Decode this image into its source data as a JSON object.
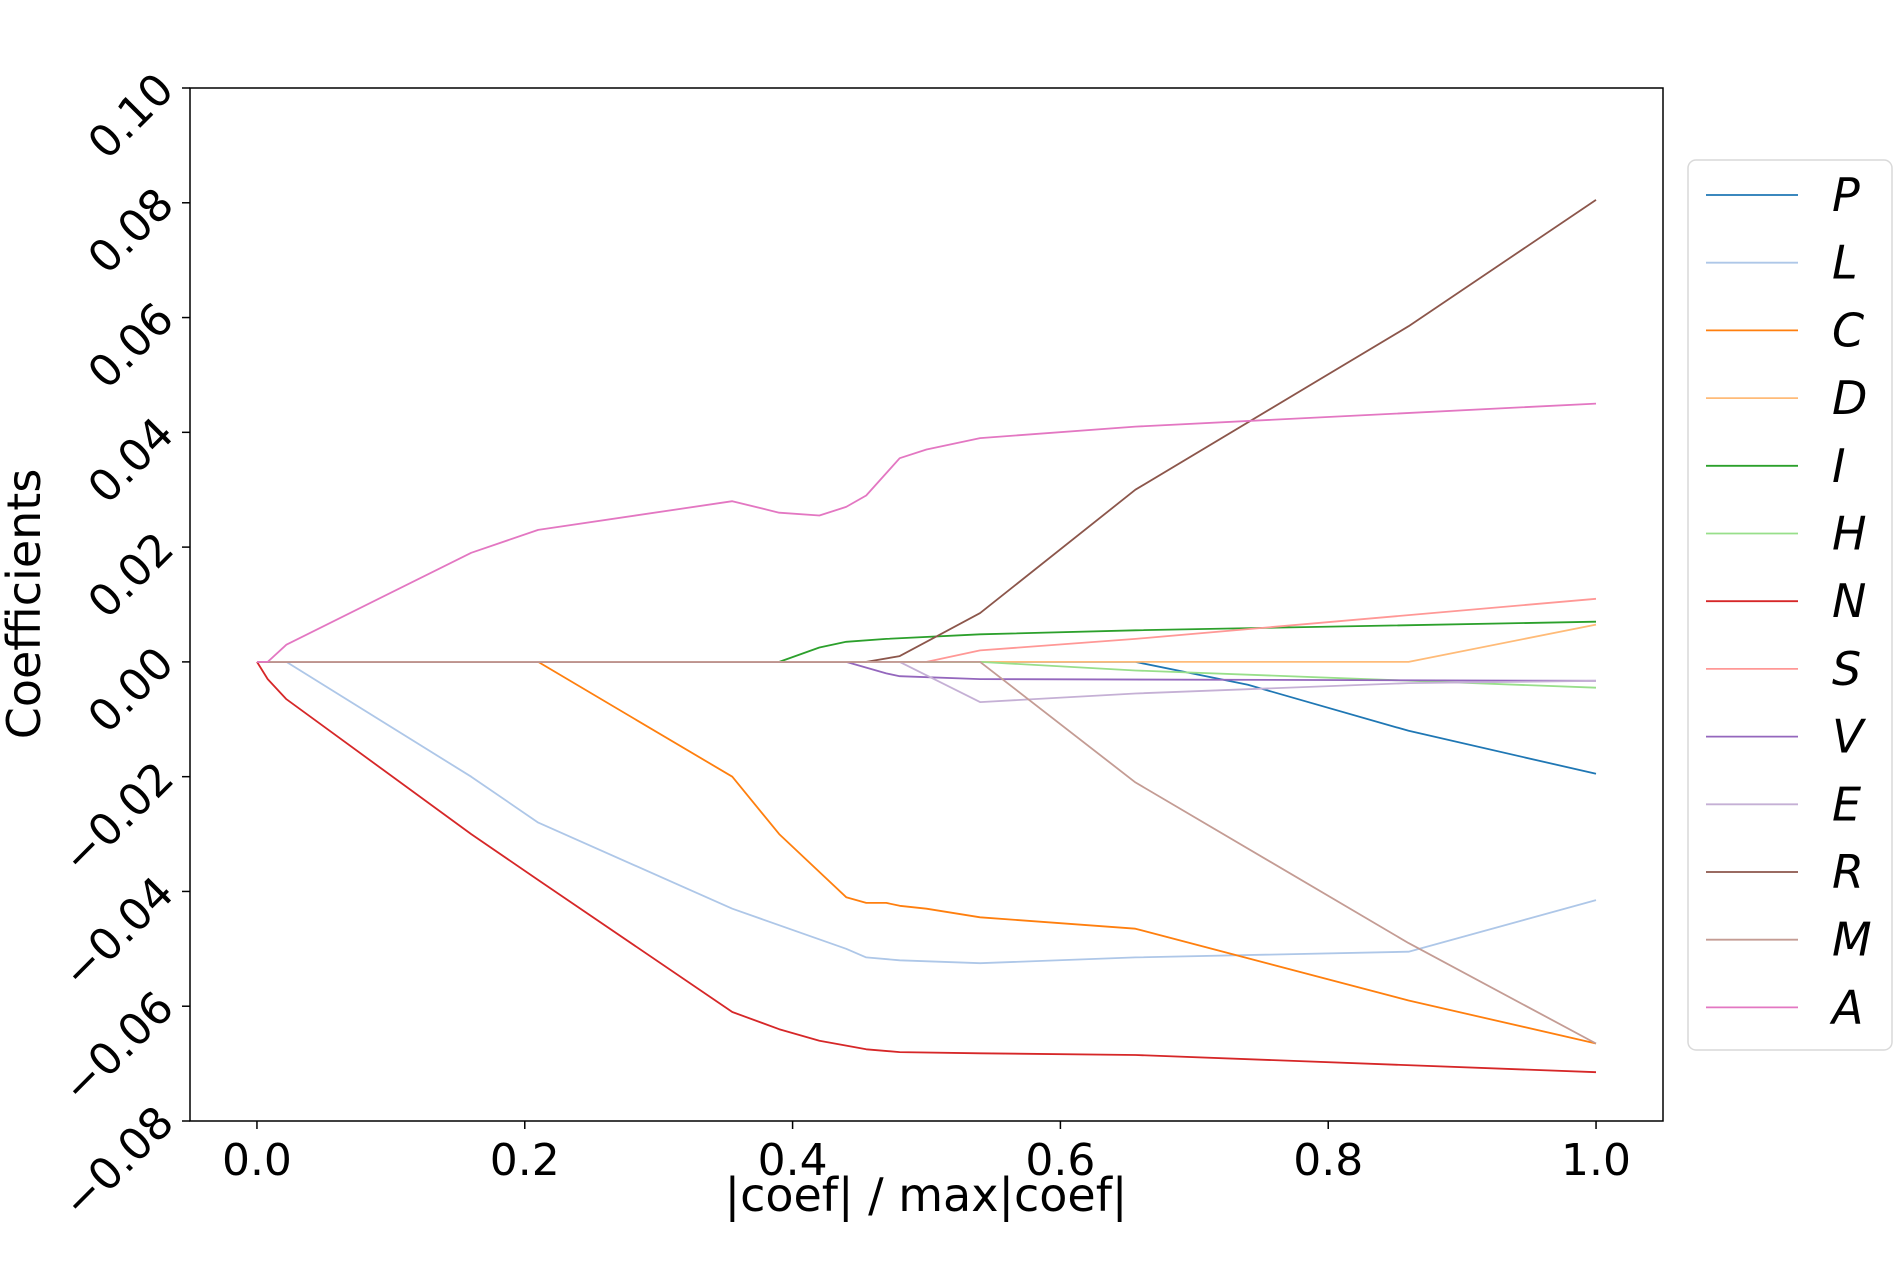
{
  "chart_data": {
    "type": "line",
    "title": "",
    "xlabel": "|coef| / max|coef|",
    "ylabel": "Coefficients",
    "xlim": [
      -0.05,
      1.05
    ],
    "ylim": [
      -0.08,
      0.1
    ],
    "xticks": [
      0.0,
      0.2,
      0.4,
      0.6,
      0.8,
      1.0
    ],
    "xtick_labels": [
      "0.0",
      "0.2",
      "0.4",
      "0.6",
      "0.8",
      "1.0"
    ],
    "yticks": [
      -0.08,
      -0.06,
      -0.04,
      -0.02,
      0.0,
      0.02,
      0.04,
      0.06,
      0.08,
      0.1
    ],
    "ytick_labels": [
      "−0.08",
      "−0.06",
      "−0.04",
      "−0.02",
      "0.00",
      "0.02",
      "0.04",
      "0.06",
      "0.08",
      "0.10"
    ],
    "grid": false,
    "legend_position": "right-outside",
    "series": [
      {
        "name": "P",
        "color": "#1f77b4",
        "x": [
          0,
          0.656,
          0.74,
          0.86,
          1.0
        ],
        "y": [
          0,
          0,
          -0.004,
          -0.012,
          -0.0195
        ]
      },
      {
        "name": "L",
        "color": "#aec7e8",
        "x": [
          0,
          0.022,
          0.16,
          0.21,
          0.355,
          0.44,
          0.455,
          0.48,
          0.54,
          0.656,
          0.86,
          1.0
        ],
        "y": [
          0,
          0,
          -0.02,
          -0.028,
          -0.043,
          -0.05,
          -0.0515,
          -0.052,
          -0.0525,
          -0.0515,
          -0.0505,
          -0.0415
        ]
      },
      {
        "name": "C",
        "color": "#ff7f0e",
        "x": [
          0,
          0.21,
          0.355,
          0.39,
          0.44,
          0.455,
          0.47,
          0.48,
          0.5,
          0.54,
          0.656,
          0.86,
          1.0
        ],
        "y": [
          0,
          0,
          -0.02,
          -0.03,
          -0.041,
          -0.042,
          -0.042,
          -0.0425,
          -0.043,
          -0.0445,
          -0.0465,
          -0.059,
          -0.0665
        ]
      },
      {
        "name": "D",
        "color": "#ffbb78",
        "x": [
          0,
          0.86,
          1.0
        ],
        "y": [
          0,
          0,
          0.0065
        ]
      },
      {
        "name": "I",
        "color": "#2ca02c",
        "x": [
          0,
          0.39,
          0.42,
          0.44,
          0.47,
          0.54,
          0.656,
          1.0
        ],
        "y": [
          0,
          0,
          0.0025,
          0.0035,
          0.004,
          0.0048,
          0.0055,
          0.007
        ]
      },
      {
        "name": "H",
        "color": "#98df8a",
        "x": [
          0,
          0.54,
          0.656,
          1.0
        ],
        "y": [
          0,
          0,
          -0.0015,
          -0.0045
        ]
      },
      {
        "name": "N",
        "color": "#d62728",
        "x": [
          0,
          0.008,
          0.022,
          0.16,
          0.21,
          0.355,
          0.39,
          0.42,
          0.455,
          0.48,
          0.54,
          0.656,
          1.0
        ],
        "y": [
          0,
          -0.003,
          -0.0065,
          -0.03,
          -0.038,
          -0.061,
          -0.064,
          -0.066,
          -0.0675,
          -0.068,
          -0.0682,
          -0.0685,
          -0.0715
        ]
      },
      {
        "name": "S",
        "color": "#ff9896",
        "x": [
          0,
          0.5,
          0.54,
          0.656,
          1.0
        ],
        "y": [
          0,
          0,
          0.002,
          0.004,
          0.011
        ]
      },
      {
        "name": "V",
        "color": "#9467bd",
        "x": [
          0,
          0.44,
          0.47,
          0.48,
          0.54,
          1.0
        ],
        "y": [
          0,
          0,
          -0.002,
          -0.0025,
          -0.003,
          -0.0033
        ]
      },
      {
        "name": "E",
        "color": "#c5b0d5",
        "x": [
          0,
          0.48,
          0.54,
          0.656,
          0.86,
          1.0
        ],
        "y": [
          0,
          0,
          -0.007,
          -0.0055,
          -0.0037,
          -0.0033
        ]
      },
      {
        "name": "R",
        "color": "#8c564b",
        "x": [
          0,
          0.455,
          0.48,
          0.54,
          0.656,
          0.86,
          1.0
        ],
        "y": [
          0,
          0,
          0.001,
          0.0085,
          0.03,
          0.0585,
          0.0805
        ]
      },
      {
        "name": "M",
        "color": "#c49c94",
        "x": [
          0,
          0.54,
          0.656,
          0.86,
          1.0
        ],
        "y": [
          0,
          0,
          -0.021,
          -0.049,
          -0.0665
        ]
      },
      {
        "name": "A",
        "color": "#e377c2",
        "x": [
          0,
          0.008,
          0.022,
          0.16,
          0.21,
          0.355,
          0.39,
          0.42,
          0.44,
          0.455,
          0.48,
          0.5,
          0.54,
          0.656,
          1.0
        ],
        "y": [
          0,
          0,
          0.003,
          0.019,
          0.023,
          0.028,
          0.026,
          0.0255,
          0.027,
          0.029,
          0.0355,
          0.037,
          0.039,
          0.041,
          0.045
        ]
      }
    ]
  }
}
